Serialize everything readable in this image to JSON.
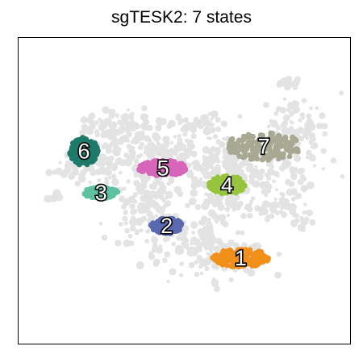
{
  "title": "sgTESK2: 7 states",
  "chart_data": {
    "type": "scatter",
    "title": "sgTESK2: 7 states",
    "xlabel": "",
    "ylabel": "",
    "grid": false,
    "axis_ticks": false,
    "background_points_color": "#e3e3e3",
    "series": [
      {
        "label": "1",
        "color": "#f0901a",
        "center": [
          0.67,
          0.72
        ],
        "spread": [
          0.085,
          0.03
        ]
      },
      {
        "label": "2",
        "color": "#5a68b0",
        "center": [
          0.447,
          0.615
        ],
        "spread": [
          0.048,
          0.025
        ]
      },
      {
        "label": "3",
        "color": "#5dc1a2",
        "center": [
          0.249,
          0.507
        ],
        "spread": [
          0.052,
          0.018
        ]
      },
      {
        "label": "4",
        "color": "#96c43c",
        "center": [
          0.629,
          0.481
        ],
        "spread": [
          0.055,
          0.03
        ]
      },
      {
        "label": "5",
        "color": "#d766ba",
        "center": [
          0.436,
          0.426
        ],
        "spread": [
          0.075,
          0.025
        ]
      },
      {
        "label": "6",
        "color": "#1e7a68",
        "center": [
          0.197,
          0.371
        ],
        "spread": [
          0.043,
          0.045
        ]
      },
      {
        "label": "7",
        "color": "#a8a993",
        "center": [
          0.74,
          0.355
        ],
        "spread": [
          0.115,
          0.045
        ]
      }
    ]
  }
}
